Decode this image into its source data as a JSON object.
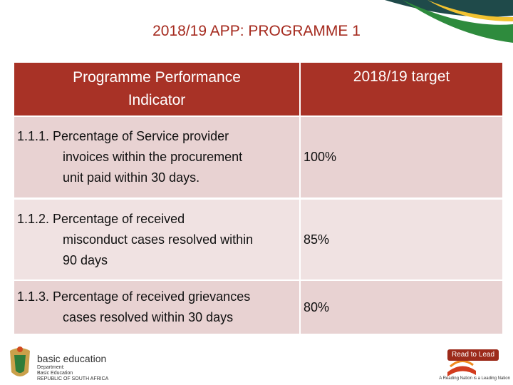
{
  "title": "2018/19 APP: PROGRAMME 1",
  "table": {
    "header": [
      "Programme Performance Indicator",
      "2018/19 target"
    ],
    "rows": [
      {
        "indicator": [
          "1.1.1. Percentage of Service provider",
          "invoices within the procurement",
          "unit paid within 30 days."
        ],
        "target": "100%"
      },
      {
        "indicator": [
          "1.1.2. Percentage of received",
          "misconduct cases resolved within",
          "90 days"
        ],
        "target": "85%"
      },
      {
        "indicator": [
          "1.1.3. Percentage of received grievances",
          "cases resolved within 30 days"
        ],
        "target": "80%"
      }
    ]
  },
  "footer": {
    "logo_left": {
      "name": "basic education",
      "department": [
        "Department:",
        "Basic Education",
        "REPUBLIC OF SOUTH AFRICA"
      ]
    },
    "logo_right": {
      "name": "Read to Lead",
      "slogan": "A Reading Nation is a Leading Nation"
    }
  }
}
